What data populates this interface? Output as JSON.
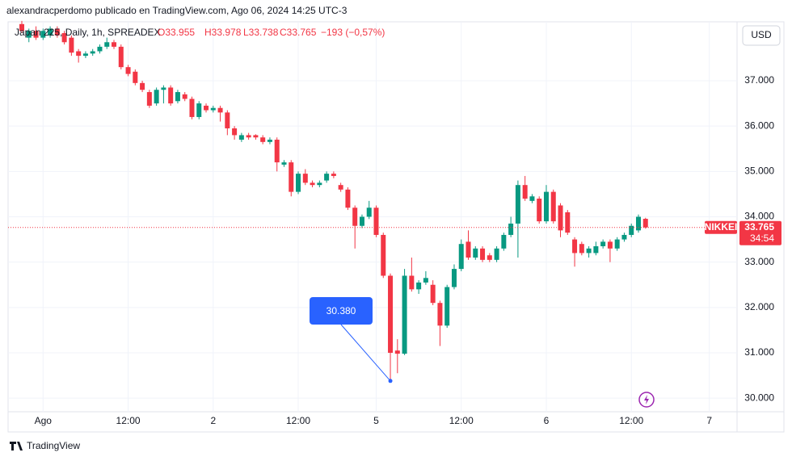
{
  "header": "alexandracperdomo publicado en TradingView.com, Ago 06, 2024 14:25 UTC-3",
  "chart_data": {
    "type": "candlestick",
    "legend": {
      "symbol": "Japan 225, Daily, 1h, SPREADEX",
      "open": "O33.955",
      "high": "H33.978",
      "low": "L33.738",
      "close": "C33.765",
      "change": "−193 (−0,57%)"
    },
    "currency": "USD",
    "categories": [
      null,
      null,
      null,
      "Ago",
      null,
      null,
      null,
      null,
      null,
      null,
      null,
      null,
      null,
      null,
      null,
      "12:00",
      null,
      null,
      null,
      null,
      null,
      null,
      null,
      null,
      null,
      null,
      null,
      "2",
      null,
      null,
      null,
      null,
      null,
      null,
      null,
      null,
      null,
      null,
      null,
      "12:00",
      null,
      null,
      null,
      null,
      null,
      null,
      null,
      null,
      null,
      null,
      "5",
      null,
      null,
      null,
      null,
      null,
      null,
      null,
      null,
      null,
      null,
      null,
      "12:00",
      null,
      null,
      null,
      null,
      null,
      null,
      null,
      null,
      null,
      null,
      null,
      "6",
      null,
      null,
      null,
      null,
      null,
      null,
      null,
      null,
      null,
      null,
      null,
      "12:00",
      null,
      null,
      null,
      null,
      null,
      null,
      null,
      null,
      null,
      null,
      "7"
    ],
    "open": [
      38.25,
      37.95,
      38.1,
      37.95,
      38.0,
      38.15,
      38.05,
      37.95,
      37.65,
      37.55,
      37.6,
      37.65,
      37.75,
      37.85,
      37.75,
      37.3,
      37.2,
      36.95,
      36.75,
      36.5,
      36.8,
      36.85,
      36.55,
      36.7,
      36.6,
      36.2,
      36.45,
      36.35,
      36.4,
      36.3,
      35.95,
      35.7,
      35.8,
      35.8,
      35.75,
      35.65,
      35.7,
      35.15,
      35.2,
      34.55,
      34.95,
      34.75,
      34.7,
      34.8,
      34.95,
      34.7,
      34.6,
      34.2,
      33.8,
      34.0,
      34.2,
      33.6,
      32.7,
      31.05,
      30.98,
      32.7,
      32.4,
      32.55,
      32.5,
      32.1,
      31.6,
      32.45,
      32.85,
      33.45,
      33.1,
      33.3,
      33.15,
      33.05,
      33.3,
      33.6,
      33.85,
      34.7,
      34.35,
      34.4,
      33.9,
      34.55,
      34.25,
      34.1,
      33.5,
      33.4,
      33.2,
      33.2,
      33.35,
      33.45,
      33.3,
      33.5,
      33.6,
      33.7,
      33.955,
      null,
      null,
      null,
      null,
      null,
      null,
      null,
      null,
      null
    ],
    "high": [
      38.32,
      38.15,
      38.2,
      38.15,
      38.2,
      38.2,
      38.1,
      38.0,
      37.7,
      37.65,
      37.7,
      37.8,
      37.95,
      37.9,
      37.8,
      37.35,
      37.25,
      37.0,
      36.8,
      36.85,
      36.9,
      36.9,
      36.8,
      36.75,
      36.65,
      36.55,
      36.5,
      36.45,
      36.45,
      36.35,
      36.0,
      35.85,
      35.85,
      35.82,
      35.8,
      35.75,
      35.75,
      35.25,
      35.25,
      35.0,
      35.05,
      34.8,
      34.8,
      35.0,
      35.0,
      34.75,
      34.65,
      34.25,
      34.05,
      34.35,
      34.25,
      33.65,
      32.75,
      31.3,
      32.85,
      33.1,
      32.6,
      32.8,
      32.6,
      32.15,
      32.5,
      32.95,
      33.5,
      33.7,
      33.35,
      33.35,
      33.2,
      33.35,
      33.65,
      34.0,
      34.8,
      34.9,
      34.5,
      34.45,
      34.7,
      34.6,
      34.3,
      34.15,
      33.55,
      33.45,
      33.35,
      33.45,
      33.5,
      33.5,
      33.55,
      33.65,
      33.85,
      34.05,
      33.978,
      null,
      null,
      null,
      null,
      null,
      null,
      null,
      null,
      null
    ],
    "low": [
      38.05,
      37.85,
      37.9,
      37.9,
      37.95,
      37.95,
      37.8,
      37.55,
      37.4,
      37.5,
      37.55,
      37.6,
      37.7,
      37.7,
      37.25,
      37.1,
      36.9,
      36.75,
      36.4,
      36.45,
      36.5,
      36.45,
      36.5,
      36.55,
      36.15,
      36.15,
      36.3,
      36.3,
      36.1,
      35.8,
      35.7,
      35.65,
      35.7,
      35.7,
      35.6,
      35.6,
      35.0,
      35.1,
      34.45,
      34.5,
      34.7,
      34.65,
      34.65,
      34.75,
      34.85,
      34.55,
      34.15,
      33.3,
      33.75,
      33.95,
      33.55,
      32.65,
      30.38,
      30.55,
      30.95,
      32.35,
      32.3,
      32.5,
      32.05,
      31.15,
      31.55,
      32.4,
      32.8,
      33.05,
      33.05,
      33.0,
      33.0,
      33.0,
      33.25,
      33.55,
      33.1,
      34.35,
      34.3,
      33.85,
      33.85,
      33.85,
      33.55,
      33.6,
      32.9,
      33.15,
      33.1,
      33.15,
      33.3,
      33.0,
      33.25,
      33.45,
      33.55,
      33.65,
      33.738,
      null,
      null,
      null,
      null,
      null,
      null,
      null,
      null,
      null
    ],
    "close": [
      38.1,
      38.1,
      37.95,
      38.1,
      38.15,
      38.0,
      37.85,
      37.62,
      37.55,
      37.6,
      37.65,
      37.75,
      37.85,
      37.75,
      37.3,
      37.15,
      36.95,
      36.8,
      36.45,
      36.8,
      36.85,
      36.5,
      36.75,
      36.6,
      36.2,
      36.5,
      36.35,
      36.4,
      36.3,
      35.95,
      35.8,
      35.8,
      35.75,
      35.75,
      35.65,
      35.7,
      35.2,
      35.2,
      34.55,
      34.95,
      34.75,
      34.7,
      34.75,
      34.95,
      34.9,
      34.6,
      34.2,
      33.8,
      34.0,
      34.2,
      33.6,
      32.7,
      31.0,
      30.98,
      32.7,
      32.4,
      32.55,
      32.65,
      32.1,
      31.6,
      32.45,
      32.85,
      33.4,
      33.1,
      33.3,
      33.05,
      33.05,
      33.3,
      33.6,
      33.85,
      34.7,
      34.4,
      34.45,
      33.9,
      34.55,
      33.9,
      33.7,
      33.65,
      33.2,
      33.2,
      33.3,
      33.35,
      33.45,
      33.3,
      33.5,
      33.6,
      33.8,
      34.0,
      33.765,
      null,
      null,
      null,
      null,
      null,
      null,
      null,
      null,
      null
    ],
    "up_color": "#089981",
    "down_color": "#f23645",
    "ylim": [
      29.7,
      38.3
    ],
    "yticks": [
      {
        "value": 30,
        "label": "30.000"
      },
      {
        "value": 31,
        "label": "31.000"
      },
      {
        "value": 32,
        "label": "32.000"
      },
      {
        "value": 33,
        "label": "33.000"
      },
      {
        "value": 34,
        "label": "34.000"
      },
      {
        "value": 35,
        "label": "35.000"
      },
      {
        "value": 36,
        "label": "36.000"
      },
      {
        "value": 37,
        "label": "37.000"
      }
    ],
    "grid": true,
    "last_price": {
      "value": 33.765,
      "label": "33.765",
      "tag": "NIKKEI",
      "countdown": "34:54"
    },
    "annotation": {
      "value": 30.38,
      "label": "30.380"
    }
  },
  "footer": "TradingView"
}
